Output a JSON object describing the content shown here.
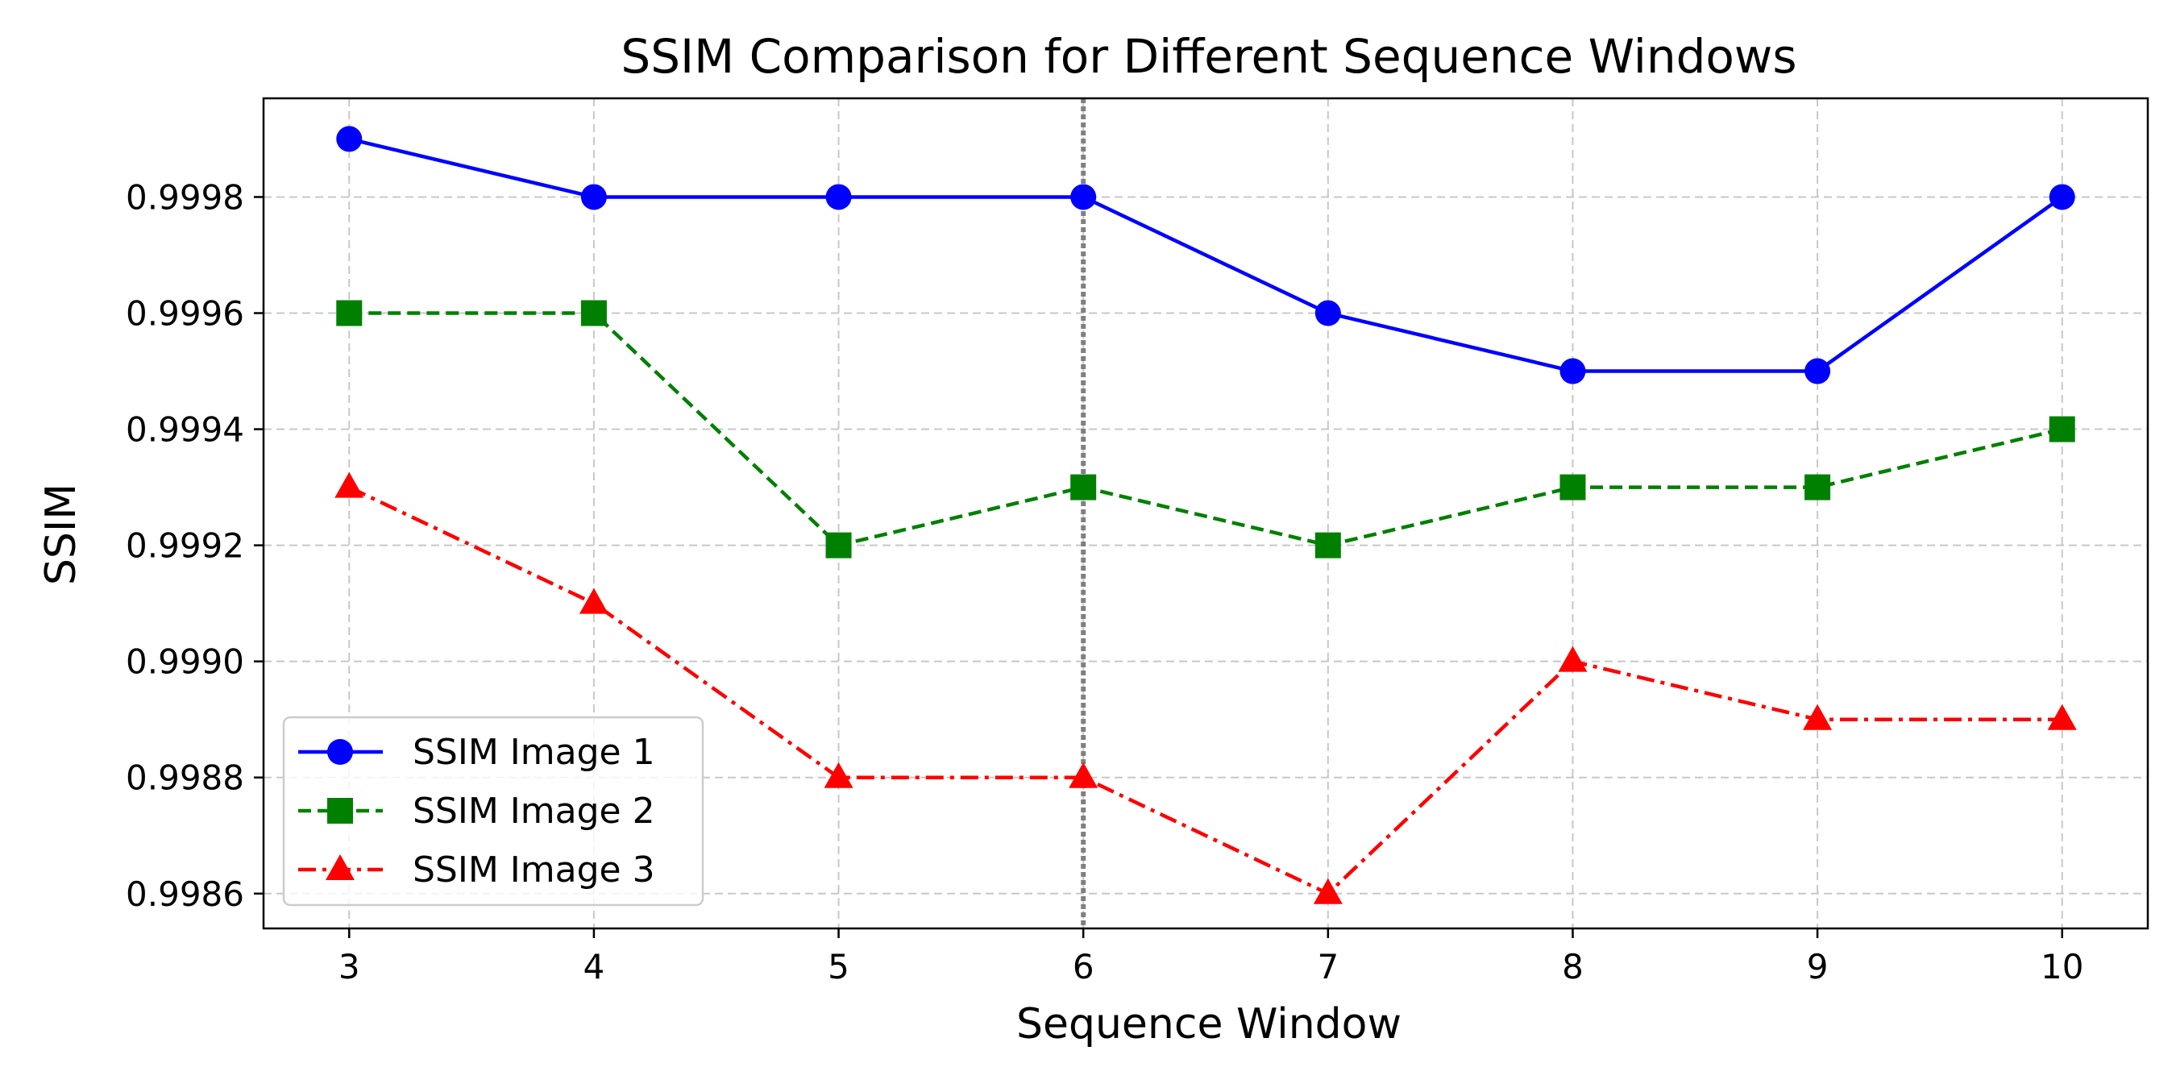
{
  "chart_data": {
    "type": "line",
    "title": "SSIM Comparison for Different Sequence Windows",
    "xlabel": "Sequence Window",
    "ylabel": "SSIM",
    "x": [
      3,
      4,
      5,
      6,
      7,
      8,
      9,
      10
    ],
    "x_ticks": [
      "3",
      "4",
      "5",
      "6",
      "7",
      "8",
      "9",
      "10"
    ],
    "xlim": [
      2.65,
      10.35
    ],
    "ylim": [
      0.99854,
      0.99997
    ],
    "y_ticks": [
      {
        "value": 0.9986,
        "label": "0.9986"
      },
      {
        "value": 0.9988,
        "label": "0.9988"
      },
      {
        "value": 0.999,
        "label": "0.9990"
      },
      {
        "value": 0.9992,
        "label": "0.9992"
      },
      {
        "value": 0.9994,
        "label": "0.9994"
      },
      {
        "value": 0.9996,
        "label": "0.9996"
      },
      {
        "value": 0.9998,
        "label": "0.9998"
      }
    ],
    "grid": true,
    "legend_position": "lower-left",
    "vertical_reference_line": {
      "x": 6,
      "style": "dotted",
      "color": "#808080"
    },
    "series": [
      {
        "name": "SSIM Image 1",
        "color": "#0000ff",
        "marker": "circle",
        "line_style": "solid",
        "values": [
          0.9999,
          0.9998,
          0.9998,
          0.9998,
          0.9996,
          0.9995,
          0.9995,
          0.9998
        ]
      },
      {
        "name": "SSIM Image 2",
        "color": "#008000",
        "marker": "square",
        "line_style": "dashed",
        "values": [
          0.9996,
          0.9996,
          0.9992,
          0.9993,
          0.9992,
          0.9993,
          0.9993,
          0.9994
        ]
      },
      {
        "name": "SSIM Image 3",
        "color": "#ff0000",
        "marker": "triangle",
        "line_style": "dashdot",
        "values": [
          0.9993,
          0.9991,
          0.9988,
          0.9988,
          0.9986,
          0.999,
          0.9989,
          0.9989
        ]
      }
    ]
  }
}
